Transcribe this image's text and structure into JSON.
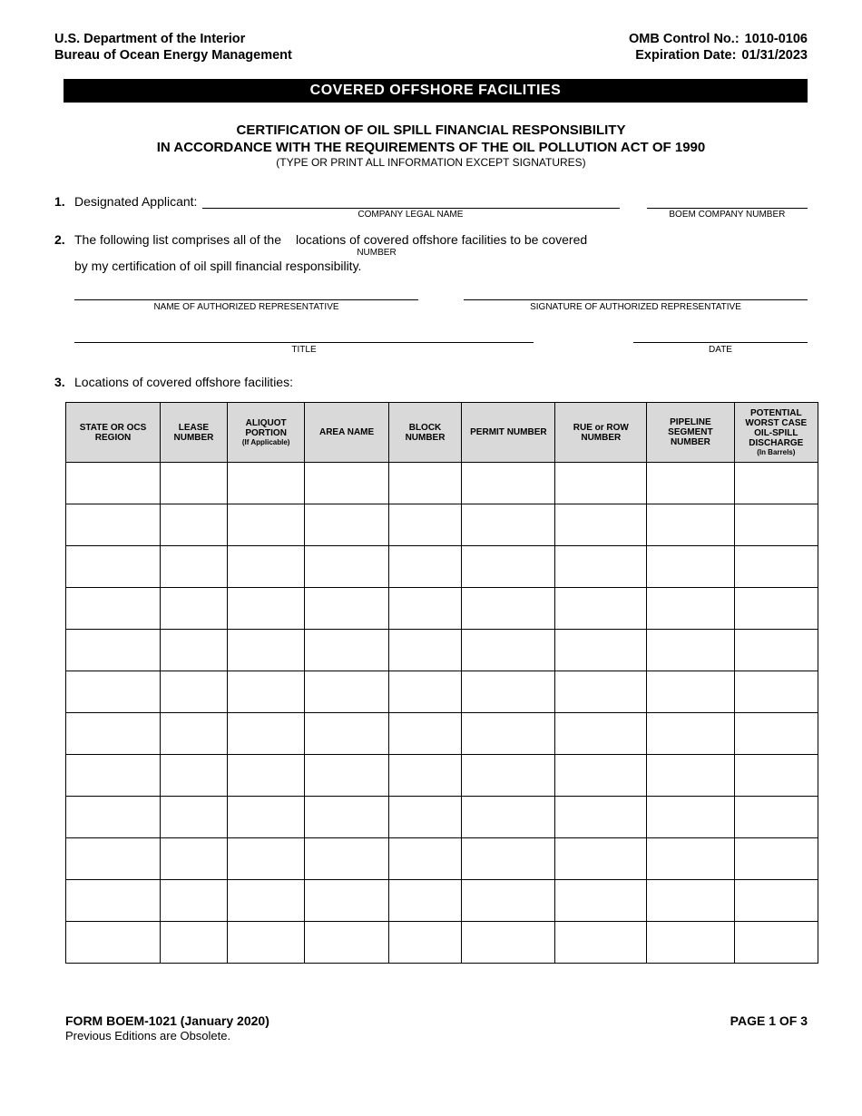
{
  "header": {
    "dept": "U.S. Department of the Interior",
    "bureau": "Bureau of Ocean Energy Management",
    "omb_label": "OMB Control No.:",
    "omb_value": "1010-0106",
    "exp_label": "Expiration Date:",
    "exp_value": "01/31/2023"
  },
  "black_bar": "COVERED OFFSHORE FACILITIES",
  "title": {
    "line1": "CERTIFICATION OF OIL SPILL FINANCIAL RESPONSIBILITY",
    "line2": "IN ACCORDANCE WITH THE REQUIREMENTS OF THE OIL POLLUTION ACT OF 1990",
    "sub": "(TYPE OR PRINT ALL INFORMATION EXCEPT SIGNATURES)"
  },
  "item1": {
    "num": "1.",
    "label": "Designated Applicant:",
    "sublabel_company": "COMPANY LEGAL NAME",
    "sublabel_boem": "BOEM COMPANY NUMBER"
  },
  "item2": {
    "num": "2.",
    "text_a": "The following list comprises all of the",
    "sublabel_number": "NUMBER",
    "text_b": "locations of covered offshore facilities to be covered",
    "text_c": "by my certification of oil spill financial responsibility."
  },
  "signatures": {
    "name_label": "NAME OF AUTHORIZED REPRESENTATIVE",
    "signature_label": "SIGNATURE OF AUTHORIZED REPRESENTATIVE",
    "title_label": "TITLE",
    "date_label": "DATE"
  },
  "item3": {
    "num": "3.",
    "label": "Locations of covered offshore facilities:"
  },
  "table": {
    "headers": {
      "state": "STATE OR OCS REGION",
      "lease": "LEASE NUMBER",
      "aliquot": "ALIQUOT PORTION",
      "aliquot_sub": "(If Applicable)",
      "area": "AREA NAME",
      "block": "BLOCK NUMBER",
      "permit": "PERMIT NUMBER",
      "rue": "RUE or ROW NUMBER",
      "pipeline": "PIPELINE SEGMENT NUMBER",
      "discharge": "POTENTIAL WORST CASE OIL-SPILL DISCHARGE",
      "discharge_sub": "(In Barrels)"
    },
    "num_rows": 12
  },
  "footer": {
    "form_id": "FORM BOEM-1021 (January 2020)",
    "obsolete": "Previous Editions are Obsolete.",
    "page": "PAGE 1 OF 3"
  }
}
